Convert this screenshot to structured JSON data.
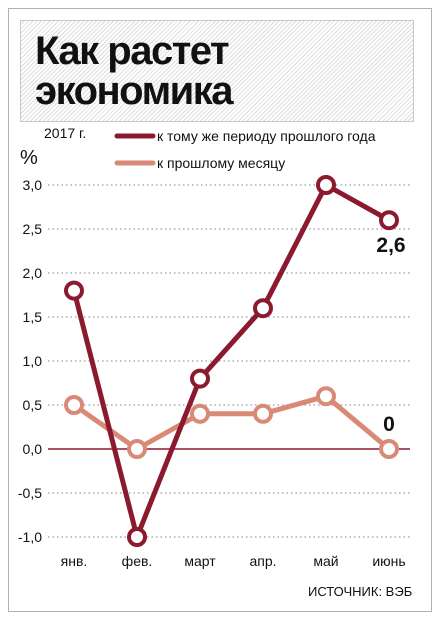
{
  "chart_data": {
    "type": "line",
    "title": "Как растет экономика",
    "year_label": "2017 г.",
    "unit_label": "%",
    "categories": [
      "янв.",
      "фев.",
      "март",
      "апр.",
      "май",
      "июнь"
    ],
    "yticks": [
      "3,0",
      "2,5",
      "2,0",
      "1,5",
      "1,0",
      "0,5",
      "0,0",
      "-0,5",
      "-1,0"
    ],
    "ylim": [
      -1.0,
      3.0
    ],
    "grid": true,
    "legend_position": "top",
    "series": [
      {
        "name": "к тому же периоду прошлого года",
        "color": "#8b1a2e",
        "values": [
          1.8,
          -1.0,
          0.8,
          1.6,
          3.0,
          2.6
        ],
        "last_label": "2,6"
      },
      {
        "name": "к прошлому месяцу",
        "color": "#d98a76",
        "values": [
          0.5,
          0.0,
          0.4,
          0.4,
          0.6,
          0.0
        ],
        "last_label": "0"
      }
    ],
    "source": "ИСТОЧНИК: ВЭБ"
  }
}
